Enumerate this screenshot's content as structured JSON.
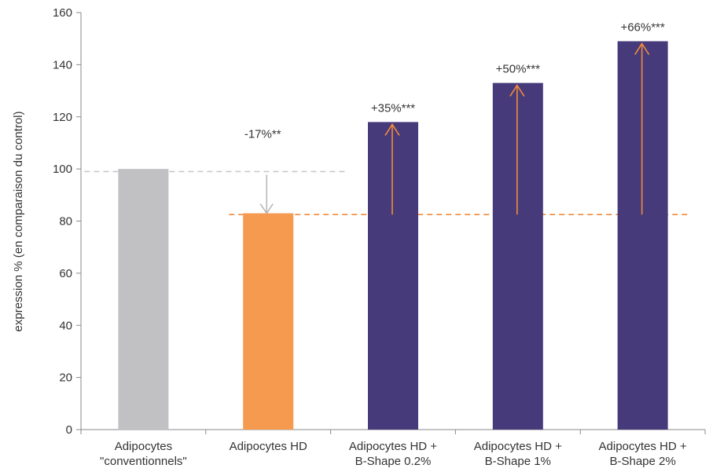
{
  "chart_data": {
    "type": "bar",
    "ylabel": "expression % (en comparaison du control)",
    "xlabel": "",
    "ylim": [
      0,
      160
    ],
    "yticks": [
      0,
      20,
      40,
      60,
      80,
      100,
      120,
      140,
      160
    ],
    "grid": false,
    "categories": [
      [
        "Adipocytes",
        "\"conventionnels\""
      ],
      [
        "Adipocytes HD"
      ],
      [
        "Adipocytes HD +",
        "B-Shape 0.2%"
      ],
      [
        "Adipocytes HD +",
        "B-Shape 1%"
      ],
      [
        "Adipocytes HD +",
        "B-Shape 2%"
      ]
    ],
    "values": [
      100,
      83,
      118,
      133,
      149
    ],
    "bar_colors": [
      "#c1c1c4",
      "#f59a4f",
      "#473a7a",
      "#473a7a",
      "#473a7a"
    ],
    "annotations": [
      "",
      "-17%**",
      "+35%***",
      "+50%***",
      "+66%***"
    ],
    "reference_lines": [
      {
        "value": 99,
        "color": "#c8c8c8"
      },
      {
        "value": 82.5,
        "color": "#f08a3c"
      }
    ],
    "arrow_colors": {
      "decrease": "#b4b4b4",
      "increase": "#f08a3c"
    }
  }
}
